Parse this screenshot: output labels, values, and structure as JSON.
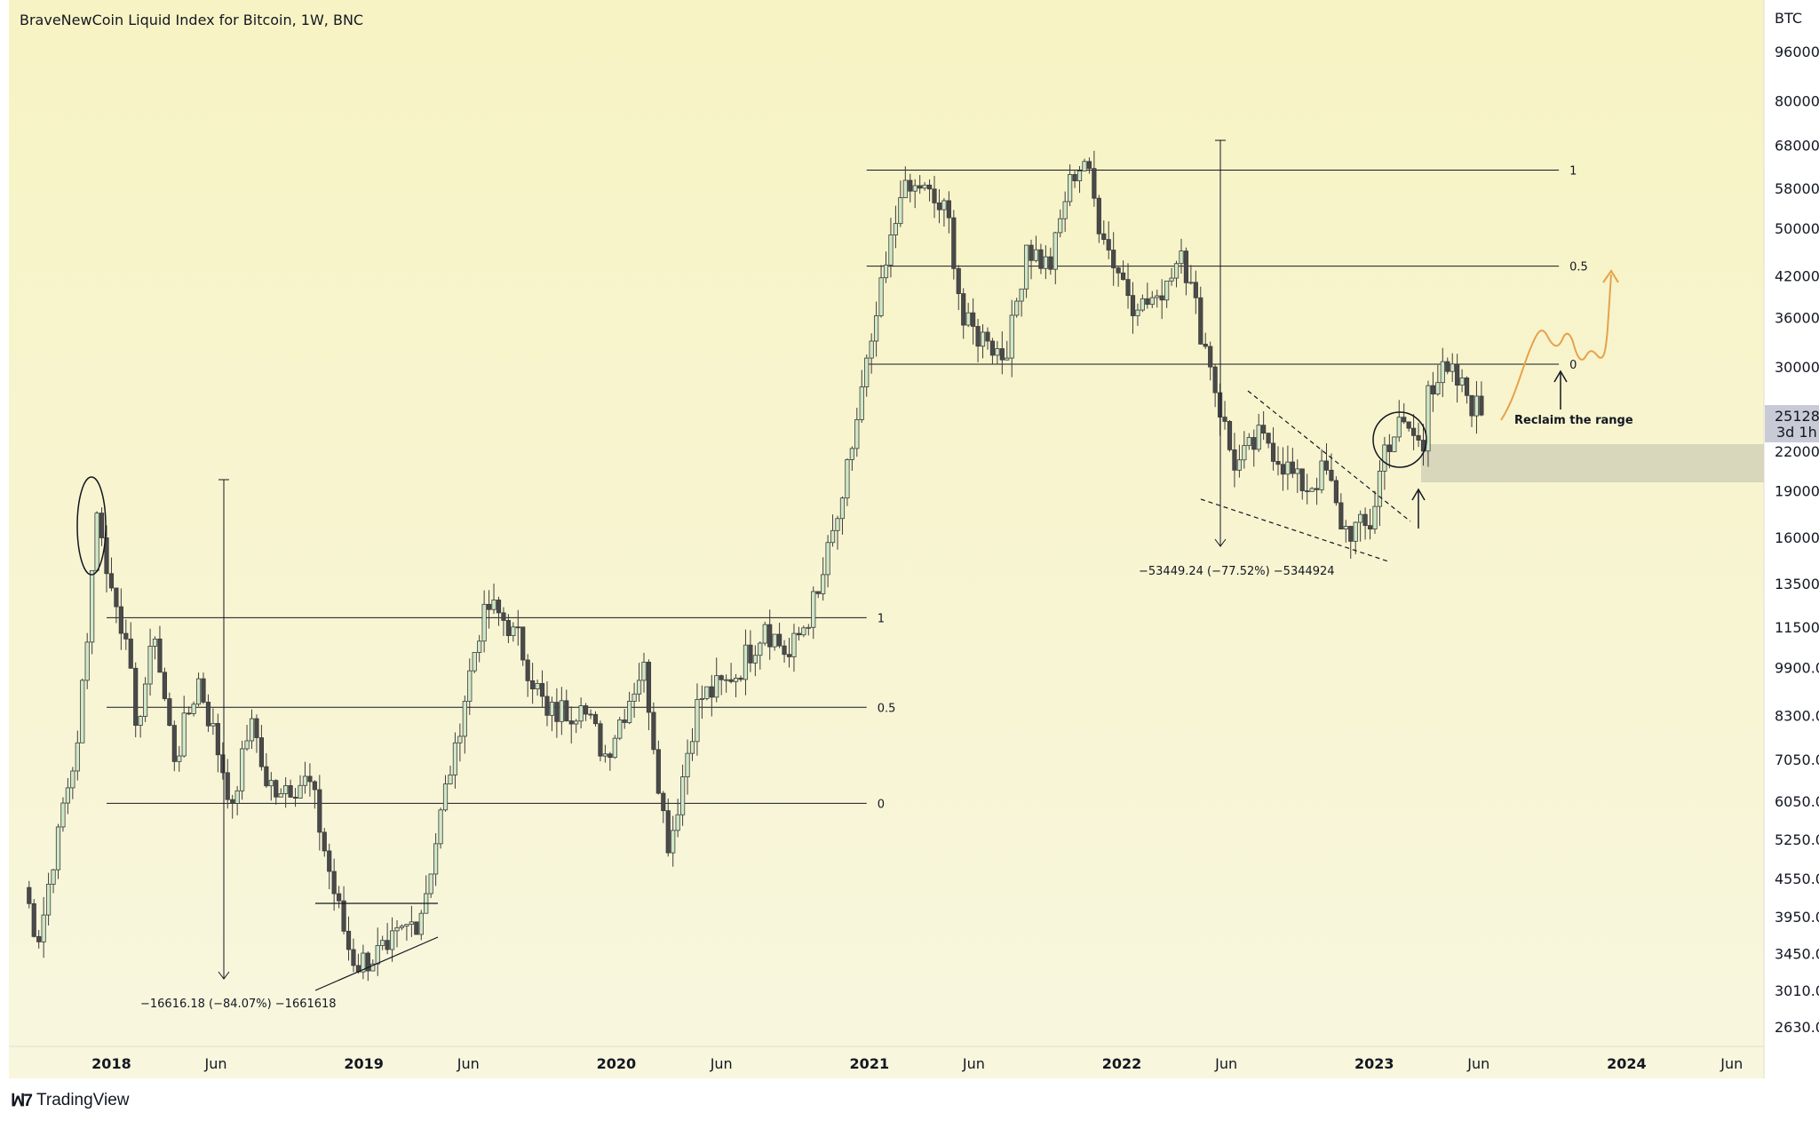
{
  "title": "BraveNewCoin Liquid Index for Bitcoin, 1W, BNC",
  "currency": "BTC",
  "brand": "TradingView",
  "price_badge": {
    "price": "25128.",
    "countdown": "3d 1h"
  },
  "colors": {
    "background_top": "#f7f3c4",
    "background_bottom": "#f8f6dd",
    "up_candle": "#cfe8c6",
    "down_candle": "#4a4a4a",
    "projection": "#e5a24b",
    "zone": "#d8d7bc",
    "badge": "#c8cad5"
  },
  "annotations": {
    "measure_2018": "−16616.18 (−84.07%) −1661618",
    "measure_2022": "−53449.24 (−77.52%) −5344924",
    "reclaim": "Reclaim the range"
  },
  "fib_levels": [
    {
      "label": "1",
      "price": 11900,
      "x_start": "2017-12-25",
      "x_end": "2020-12-28"
    },
    {
      "label": "0.5",
      "price": 8550,
      "x_start": "2017-12-25",
      "x_end": "2020-12-28"
    },
    {
      "label": "0",
      "price": 6000,
      "x_start": "2017-12-25",
      "x_end": "2020-12-28"
    },
    {
      "label": "1",
      "price": 62000,
      "x_start": "2020-12-28",
      "x_end": "2023-09-25"
    },
    {
      "label": "0.5",
      "price": 43500,
      "x_start": "2020-12-28",
      "x_end": "2023-09-25"
    },
    {
      "label": "0",
      "price": 30300,
      "x_start": "2020-12-28",
      "x_end": "2023-09-25"
    }
  ],
  "chart_data": {
    "type": "candlestick",
    "title": "BraveNewCoin Liquid Index for Bitcoin, 1W, BNC",
    "x_ticks": [
      "2018",
      "Jun",
      "2019",
      "Jun",
      "2020",
      "Jun",
      "2021",
      "Jun",
      "2022",
      "Jun",
      "2023",
      "Jun",
      "2024",
      "Jun"
    ],
    "x_tick_dates": [
      "2018-01-01",
      "2018-06-01",
      "2019-01-01",
      "2019-06-01",
      "2020-01-01",
      "2020-06-01",
      "2021-01-01",
      "2021-06-01",
      "2022-01-01",
      "2022-06-01",
      "2023-01-01",
      "2023-06-01",
      "2024-01-01",
      "2024-06-01"
    ],
    "y_ticks": [
      "96000.",
      "80000.",
      "68000.",
      "58000.",
      "50000.",
      "42000.",
      "36000.",
      "30000.",
      "22000.",
      "19000.",
      "16000.",
      "13500.",
      "11500.",
      "9900.0",
      "8300.0",
      "7050.0",
      "6050.0",
      "5250.0",
      "4550.0",
      "3950.0",
      "3450.0",
      "3010.0",
      "2630.0"
    ],
    "y_scale": "log",
    "y_range": [
      2500,
      115000
    ],
    "x_range": [
      "2017-08-28",
      "2024-07-29"
    ],
    "last_price": 25128,
    "grid": false,
    "anchors": [
      [
        "2017-08-28",
        4400
      ],
      [
        "2017-09-18",
        3600
      ],
      [
        "2017-10-16",
        5500
      ],
      [
        "2017-11-13",
        7500
      ],
      [
        "2017-12-11",
        17500
      ],
      [
        "2017-12-25",
        14000
      ],
      [
        "2018-01-22",
        11000
      ],
      [
        "2018-02-05",
        8000
      ],
      [
        "2018-03-05",
        11000
      ],
      [
        "2018-04-02",
        7000
      ],
      [
        "2018-05-07",
        9500
      ],
      [
        "2018-06-25",
        6000
      ],
      [
        "2018-07-23",
        8200
      ],
      [
        "2018-08-13",
        6400
      ],
      [
        "2018-10-15",
        6500
      ],
      [
        "2018-11-19",
        4300
      ],
      [
        "2018-12-17",
        3300
      ],
      [
        "2019-02-04",
        3500
      ],
      [
        "2019-03-25",
        4000
      ],
      [
        "2019-05-13",
        7500
      ],
      [
        "2019-06-24",
        12500
      ],
      [
        "2019-08-05",
        11500
      ],
      [
        "2019-09-23",
        8300
      ],
      [
        "2019-11-11",
        8600
      ],
      [
        "2019-12-16",
        7200
      ],
      [
        "2020-02-10",
        10100
      ],
      [
        "2020-03-16",
        5000
      ],
      [
        "2020-04-27",
        8800
      ],
      [
        "2020-06-15",
        9400
      ],
      [
        "2020-08-03",
        11600
      ],
      [
        "2020-09-07",
        10300
      ],
      [
        "2020-10-19",
        13000
      ],
      [
        "2020-11-23",
        18500
      ],
      [
        "2021-01-04",
        33000
      ],
      [
        "2021-02-15",
        56000
      ],
      [
        "2021-03-15",
        58000
      ],
      [
        "2021-04-26",
        52000
      ],
      [
        "2021-05-17",
        35000
      ],
      [
        "2021-06-21",
        33000
      ],
      [
        "2021-07-19",
        31000
      ],
      [
        "2021-08-16",
        47000
      ],
      [
        "2021-09-20",
        43000
      ],
      [
        "2021-10-18",
        61000
      ],
      [
        "2021-11-08",
        64000
      ],
      [
        "2021-12-06",
        48000
      ],
      [
        "2022-01-24",
        37000
      ],
      [
        "2022-02-21",
        39000
      ],
      [
        "2022-03-28",
        46000
      ],
      [
        "2022-05-09",
        30000
      ],
      [
        "2022-06-13",
        20500
      ],
      [
        "2022-07-25",
        23500
      ],
      [
        "2022-09-19",
        19000
      ],
      [
        "2022-10-24",
        20500
      ],
      [
        "2022-11-14",
        16500
      ],
      [
        "2022-12-26",
        16500
      ],
      [
        "2023-01-16",
        22500
      ],
      [
        "2023-02-13",
        24500
      ],
      [
        "2023-03-13",
        22000
      ],
      [
        "2023-03-20",
        28000
      ],
      [
        "2023-04-17",
        29500
      ],
      [
        "2023-05-15",
        27000
      ],
      [
        "2023-06-05",
        25128
      ]
    ]
  }
}
